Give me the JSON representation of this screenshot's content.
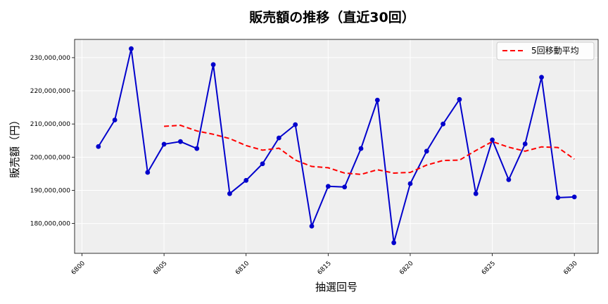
{
  "chart_data": {
    "type": "line",
    "title": "販売額の推移（直近30回）",
    "xlabel": "抽選回号",
    "ylabel": "販売額（円）",
    "xlim": [
      6799.55,
      6831.45
    ],
    "ylim": [
      171000000,
      235500000
    ],
    "x_ticks": [
      6800,
      6805,
      6810,
      6815,
      6820,
      6825,
      6830
    ],
    "y_ticks": [
      180000000,
      190000000,
      200000000,
      210000000,
      220000000,
      230000000
    ],
    "y_tick_labels": [
      "180,000,000",
      "190,000,000",
      "200,000,000",
      "210,000,000",
      "220,000,000",
      "230,000,000"
    ],
    "grid": true,
    "legend_position": "top-right",
    "colors": {
      "sales": "#0000cc",
      "moving_average": "#ff0000",
      "plot_bg": "#efefef"
    },
    "x": [
      6801,
      6802,
      6803,
      6804,
      6805,
      6806,
      6807,
      6808,
      6809,
      6810,
      6811,
      6812,
      6813,
      6814,
      6815,
      6816,
      6817,
      6818,
      6819,
      6820,
      6821,
      6822,
      6823,
      6824,
      6825,
      6826,
      6827,
      6828,
      6829,
      6830
    ],
    "series": [
      {
        "values": [
          203200000,
          211200000,
          232700000,
          195400000,
          203900000,
          204700000,
          202600000,
          227900000,
          189000000,
          193000000,
          198000000,
          205800000,
          209800000,
          179200000,
          191200000,
          191000000,
          202600000,
          217200000,
          174200000,
          192000000,
          201800000,
          210000000,
          217400000,
          189000000,
          205200000,
          193200000,
          204000000,
          224100000,
          187800000,
          188000000
        ]
      },
      {
        "name": "5回移動平均",
        "values": [
          null,
          null,
          null,
          null,
          209300000,
          209600000,
          207900000,
          206900000,
          205600000,
          203500000,
          202100000,
          202700000,
          199100000,
          197200000,
          196800000,
          195200000,
          194800000,
          196200000,
          195200000,
          195400000,
          197600000,
          199000000,
          199100000,
          202000000,
          204700000,
          203000000,
          201800000,
          203100000,
          202900000,
          199400000
        ]
      }
    ]
  }
}
